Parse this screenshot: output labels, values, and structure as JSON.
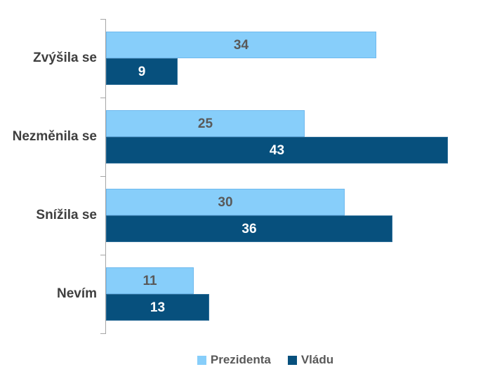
{
  "chart_data": {
    "type": "bar",
    "orientation": "horizontal",
    "title": "",
    "xlabel": "",
    "ylabel": "",
    "categories": [
      "Zvýšila se",
      "Nezměnila se",
      "Snížila se",
      "Nevím"
    ],
    "series": [
      {
        "name": "Prezidenta",
        "values": [
          34,
          25,
          30,
          11
        ],
        "color": "#87CEFA",
        "border_color": "#6FB9EE",
        "value_label_color": "#595959"
      },
      {
        "name": "Vládu",
        "values": [
          9,
          43,
          36,
          13
        ],
        "color": "#07507D",
        "border_color": "#2E6E98",
        "value_label_color": "#FFFFFF"
      }
    ],
    "xlim": [
      0,
      45
    ],
    "grid": false,
    "legend_position": "bottom",
    "axis_color": "#A6A6A6",
    "category_label_color": "#3F3F3F",
    "legend_label_color": "#595959",
    "background_color": "#FFFFFF"
  }
}
